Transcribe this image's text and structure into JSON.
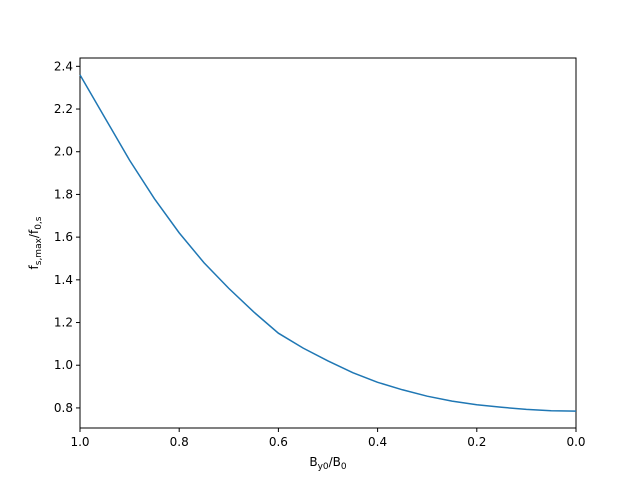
{
  "chart_data": {
    "type": "line",
    "xlabel": [
      {
        "text": "B"
      },
      {
        "sub": "y0"
      },
      {
        "text": "/B"
      },
      {
        "sub": "0"
      }
    ],
    "ylabel": [
      {
        "text": "f"
      },
      {
        "sub": "s,max"
      },
      {
        "text": "/f"
      },
      {
        "sub": "0,s"
      }
    ],
    "x": [
      1.0,
      0.95,
      0.9,
      0.85,
      0.8,
      0.75,
      0.7,
      0.65,
      0.6,
      0.55,
      0.5,
      0.45,
      0.4,
      0.35,
      0.3,
      0.25,
      0.2,
      0.15,
      0.1,
      0.05,
      0.0
    ],
    "series": [
      {
        "color": "#1f77b4",
        "values": [
          2.36,
          2.16,
          1.96,
          1.78,
          1.62,
          1.48,
          1.36,
          1.25,
          1.15,
          1.08,
          1.02,
          0.965,
          0.92,
          0.885,
          0.855,
          0.832,
          0.815,
          0.803,
          0.793,
          0.787,
          0.785
        ]
      }
    ],
    "xlim": [
      1.0,
      0.0
    ],
    "xticks": [
      {
        "value": 1.0,
        "label": "1.0"
      },
      0.8,
      0.6,
      0.4,
      0.2,
      {
        "value": 0.0,
        "label": "0.0"
      }
    ],
    "ylim": [
      0.706,
      2.439
    ],
    "yticks": [
      0.8,
      {
        "value": 1.0,
        "label": "1.0"
      },
      1.2,
      1.4,
      1.6,
      1.8,
      {
        "value": 2.0,
        "label": "2.0"
      },
      2.2,
      2.4
    ],
    "grid": false
  }
}
